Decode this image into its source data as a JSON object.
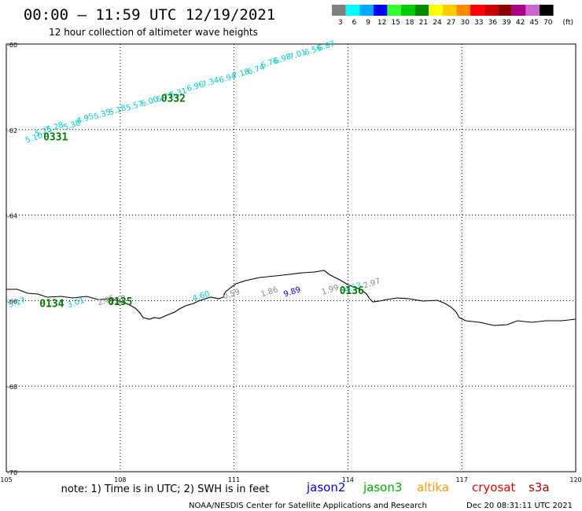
{
  "header": {
    "title": "00:00 – 11:59 UTC 12/19/2021",
    "subtitle": "12 hour collection of altimeter wave heights"
  },
  "legend": {
    "units": "(ft)",
    "bins": [
      {
        "label": "3",
        "color": "#808080"
      },
      {
        "label": "6",
        "color": "#00ffff"
      },
      {
        "label": "9",
        "color": "#00aaff"
      },
      {
        "label": "12",
        "color": "#0000ff"
      },
      {
        "label": "15",
        "color": "#33ff33"
      },
      {
        "label": "18",
        "color": "#00cc00"
      },
      {
        "label": "21",
        "color": "#008800"
      },
      {
        "label": "24",
        "color": "#ffff00"
      },
      {
        "label": "27",
        "color": "#ffcc00"
      },
      {
        "label": "30",
        "color": "#ff8800"
      },
      {
        "label": "33",
        "color": "#ff0000"
      },
      {
        "label": "36",
        "color": "#cc0000"
      },
      {
        "label": "39",
        "color": "#880000"
      },
      {
        "label": "42",
        "color": "#aa0088"
      },
      {
        "label": "45",
        "color": "#cc66cc"
      },
      {
        "label": "70",
        "color": "#000000"
      }
    ]
  },
  "axes": {
    "lon_ticks": [
      "105",
      "108",
      "111",
      "114",
      "117",
      "120"
    ],
    "lat_ticks": [
      "-60",
      "-62",
      "-64",
      "-66",
      "-68",
      "-70"
    ],
    "lon_range": [
      105,
      120
    ],
    "lat_range": [
      -60,
      -70
    ]
  },
  "passes": [
    {
      "label": "0331",
      "lon": 106.3,
      "lat": -62.25
    },
    {
      "label": "0332",
      "lon": 109.4,
      "lat": -61.35
    },
    {
      "label": "0134",
      "lon": 106.2,
      "lat": -66.15
    },
    {
      "label": "0135",
      "lon": 108.0,
      "lat": -66.1
    },
    {
      "label": "0136",
      "lon": 114.1,
      "lat": -65.85
    }
  ],
  "wave_heights": [
    {
      "value": "5.10",
      "lon": 105.75,
      "lat": -62.25,
      "color": "#00cccc"
    },
    {
      "value": "5.25",
      "lon": 106.0,
      "lat": -62.1,
      "color": "#00cccc"
    },
    {
      "value": "5.28",
      "lon": 106.3,
      "lat": -62.0,
      "color": "#00cccc"
    },
    {
      "value": "5.38",
      "lon": 106.75,
      "lat": -61.95,
      "color": "#00cccc"
    },
    {
      "value": "4.95",
      "lon": 107.1,
      "lat": -61.8,
      "color": "#00cccc"
    },
    {
      "value": "5.35",
      "lon": 107.55,
      "lat": -61.7,
      "color": "#00cccc"
    },
    {
      "value": "5.18",
      "lon": 107.95,
      "lat": -61.6,
      "color": "#00cccc"
    },
    {
      "value": "5.57",
      "lon": 108.4,
      "lat": -61.5,
      "color": "#00cccc"
    },
    {
      "value": "6.00",
      "lon": 108.8,
      "lat": -61.4,
      "color": "#00cccc"
    },
    {
      "value": "6.77",
      "lon": 109.2,
      "lat": -61.3,
      "color": "#00cccc"
    },
    {
      "value": "6.31",
      "lon": 109.55,
      "lat": -61.2,
      "color": "#00cccc"
    },
    {
      "value": "6.96",
      "lon": 110.0,
      "lat": -61.05,
      "color": "#00cccc"
    },
    {
      "value": "7.34",
      "lon": 110.4,
      "lat": -60.95,
      "color": "#00cccc"
    },
    {
      "value": "6.94",
      "lon": 110.85,
      "lat": -60.85,
      "color": "#00cccc"
    },
    {
      "value": "7.18",
      "lon": 111.2,
      "lat": -60.75,
      "color": "#00cccc"
    },
    {
      "value": "6.74",
      "lon": 111.6,
      "lat": -60.65,
      "color": "#00cccc"
    },
    {
      "value": "6.76",
      "lon": 111.95,
      "lat": -60.5,
      "color": "#00cccc"
    },
    {
      "value": "6.98",
      "lon": 112.3,
      "lat": -60.4,
      "color": "#00cccc"
    },
    {
      "value": "7.01",
      "lon": 112.7,
      "lat": -60.3,
      "color": "#00cccc"
    },
    {
      "value": "6.56",
      "lon": 113.1,
      "lat": -60.2,
      "color": "#00cccc"
    },
    {
      "value": "6.87",
      "lon": 113.45,
      "lat": -60.1,
      "color": "#00cccc"
    },
    {
      "value": "5.17",
      "lon": 105.3,
      "lat": -66.1,
      "color": "#00cccc"
    },
    {
      "value": "3.01",
      "lon": 106.85,
      "lat": -66.1,
      "color": "#00cccc"
    },
    {
      "value": "2.05",
      "lon": 107.65,
      "lat": -66.05,
      "color": "#888888"
    },
    {
      "value": "2.58",
      "lon": 107.95,
      "lat": -66.05,
      "color": "#888888"
    },
    {
      "value": "4.60",
      "lon": 110.15,
      "lat": -65.95,
      "color": "#00cccc"
    },
    {
      "value": "0.59",
      "lon": 110.95,
      "lat": -65.9,
      "color": "#888888"
    },
    {
      "value": "1.86",
      "lon": 111.95,
      "lat": -65.85,
      "color": "#888888"
    },
    {
      "value": "9.89",
      "lon": 112.55,
      "lat": -65.85,
      "color": "#0000cc"
    },
    {
      "value": "1.99",
      "lon": 113.55,
      "lat": -65.8,
      "color": "#888888"
    },
    {
      "value": "4.53",
      "lon": 114.15,
      "lat": -65.75,
      "color": "#00cccc"
    },
    {
      "value": "2.97",
      "lon": 114.65,
      "lat": -65.65,
      "color": "#888888"
    }
  ],
  "satellites": [
    {
      "name": "jason2",
      "color": "#0000dd"
    },
    {
      "name": "jason3",
      "color": "#00aa00"
    },
    {
      "name": "altika",
      "color": "#ff9900"
    },
    {
      "name": "cryosat",
      "color": "#ee0000"
    },
    {
      "name": "s3a",
      "color": "#aa0000"
    }
  ],
  "note": "note: 1) Time is in UTC; 2) SWH is in feet",
  "credit": "NOAA/NESDIS Center for Satellite Applications and Research",
  "timestamp": "Dec 20 08:31:11 UTC 2021"
}
